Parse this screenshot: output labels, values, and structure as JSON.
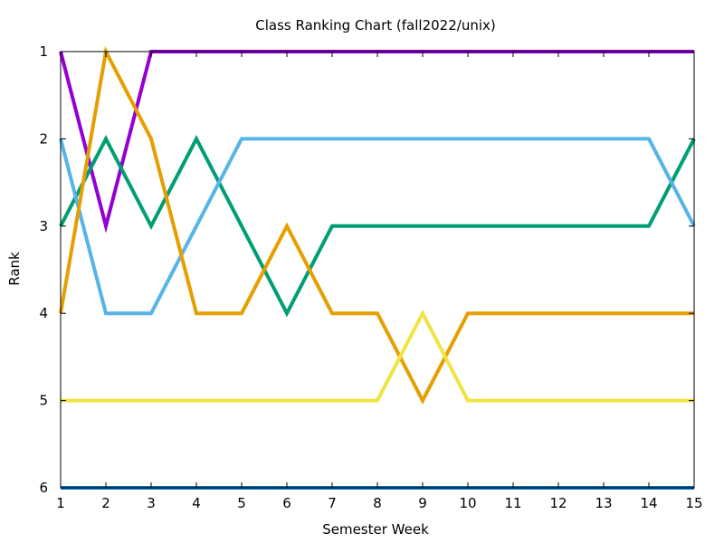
{
  "chart_data": {
    "type": "line",
    "title": "Class Ranking Chart (fall2022/unix)",
    "xlabel": "Semester Week",
    "ylabel": "Rank",
    "x": [
      1,
      2,
      3,
      4,
      5,
      6,
      7,
      8,
      9,
      10,
      11,
      12,
      13,
      14,
      15
    ],
    "xlim": [
      1,
      15
    ],
    "ylim": [
      1,
      6
    ],
    "y_inverted": true,
    "xticks": [
      "1",
      "2",
      "3",
      "4",
      "5",
      "6",
      "7",
      "8",
      "9",
      "10",
      "11",
      "12",
      "13",
      "14",
      "15"
    ],
    "yticks": [
      "1",
      "2",
      "3",
      "4",
      "5",
      "6"
    ],
    "grid": false,
    "series": [
      {
        "color": "#9400d3",
        "values": [
          1,
          3,
          1,
          1,
          1,
          1,
          1,
          1,
          1,
          1,
          1,
          1,
          1,
          1,
          1
        ]
      },
      {
        "color": "#009e73",
        "values": [
          3,
          2,
          3,
          2,
          3,
          4,
          3,
          3,
          3,
          3,
          3,
          3,
          3,
          3,
          2
        ]
      },
      {
        "color": "#56b4e9",
        "values": [
          2,
          4,
          4,
          3,
          2,
          2,
          2,
          2,
          2,
          2,
          2,
          2,
          2,
          2,
          3
        ]
      },
      {
        "color": "#e69f00",
        "values": [
          4,
          1,
          2,
          4,
          4,
          3,
          4,
          4,
          5,
          4,
          4,
          4,
          4,
          4,
          4
        ]
      },
      {
        "color": "#f0e442",
        "values": [
          5,
          5,
          5,
          5,
          5,
          5,
          5,
          5,
          4,
          5,
          5,
          5,
          5,
          5,
          5
        ]
      },
      {
        "color": "#0072b2",
        "values": [
          6,
          6,
          6,
          6,
          6,
          6,
          6,
          6,
          6,
          6,
          6,
          6,
          6,
          6,
          6
        ]
      }
    ]
  }
}
